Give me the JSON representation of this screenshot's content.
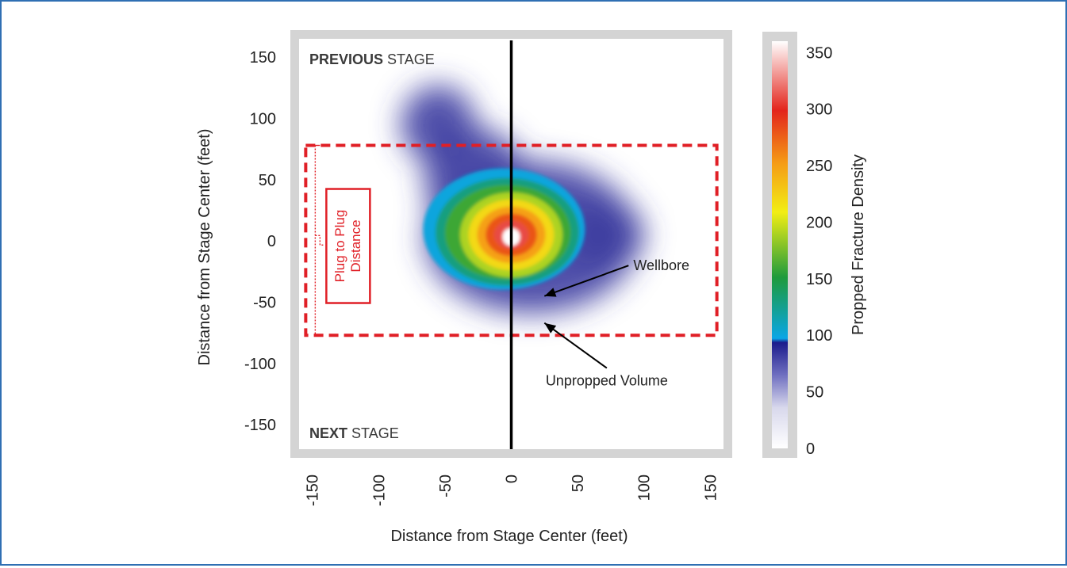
{
  "chart_data": {
    "type": "heatmap",
    "xlabel": "Distance from Stage Center (feet)",
    "ylabel": "Distance from Stage Center (feet)",
    "xlim": [
      -160,
      160
    ],
    "ylim": [
      -170,
      165
    ],
    "xticks": [
      -150,
      -100,
      -50,
      0,
      50,
      100,
      150
    ],
    "yticks": [
      150,
      100,
      50,
      0,
      -50,
      -100,
      -150
    ],
    "wellbore_x": 0,
    "region_labels": {
      "top_bold": "PREVIOUS",
      "top_rest": "STAGE",
      "bottom_bold": "NEXT",
      "bottom_rest": "STAGE"
    },
    "plug_box": {
      "x0": -155,
      "x1": 155,
      "y0": -77,
      "y1": 78
    },
    "plug_label_line1": "Plug to Plug",
    "plug_label_line2": "Distance",
    "annotations": [
      {
        "text": "Wellbore",
        "text_x": 92,
        "text_y": -24,
        "arrow_to": [
          25,
          -45
        ]
      },
      {
        "text": "Unpropped Volume",
        "text_x": 72,
        "text_y": -118,
        "arrow_to": [
          25,
          -67
        ]
      }
    ],
    "colorbar": {
      "label": "Propped Fracture Density",
      "ticks": [
        350,
        300,
        250,
        200,
        150,
        100,
        50,
        0
      ],
      "range": [
        0,
        360
      ]
    },
    "density_field": {
      "peak": 360,
      "center": [
        0,
        5
      ],
      "core_radius": [
        58,
        52
      ],
      "halo_centers": [
        [
          -55,
          95
        ],
        [
          70,
          5
        ]
      ],
      "contour_levels": [
        100,
        130,
        160,
        190,
        220,
        250,
        280,
        310,
        340
      ]
    }
  },
  "colors": {
    "frame_border": "#2f6fb3",
    "plot_frame": "#d4d4d4",
    "plug_box": "#e01f26",
    "wellbore": "#000000",
    "colormap": [
      "#ffffff",
      "#d8d8ec",
      "#6f6fc0",
      "#1c1c8c",
      "#0aa6e6",
      "#1e9a3c",
      "#f2ee14",
      "#f59c16",
      "#e3241b",
      "#ffffff"
    ]
  }
}
